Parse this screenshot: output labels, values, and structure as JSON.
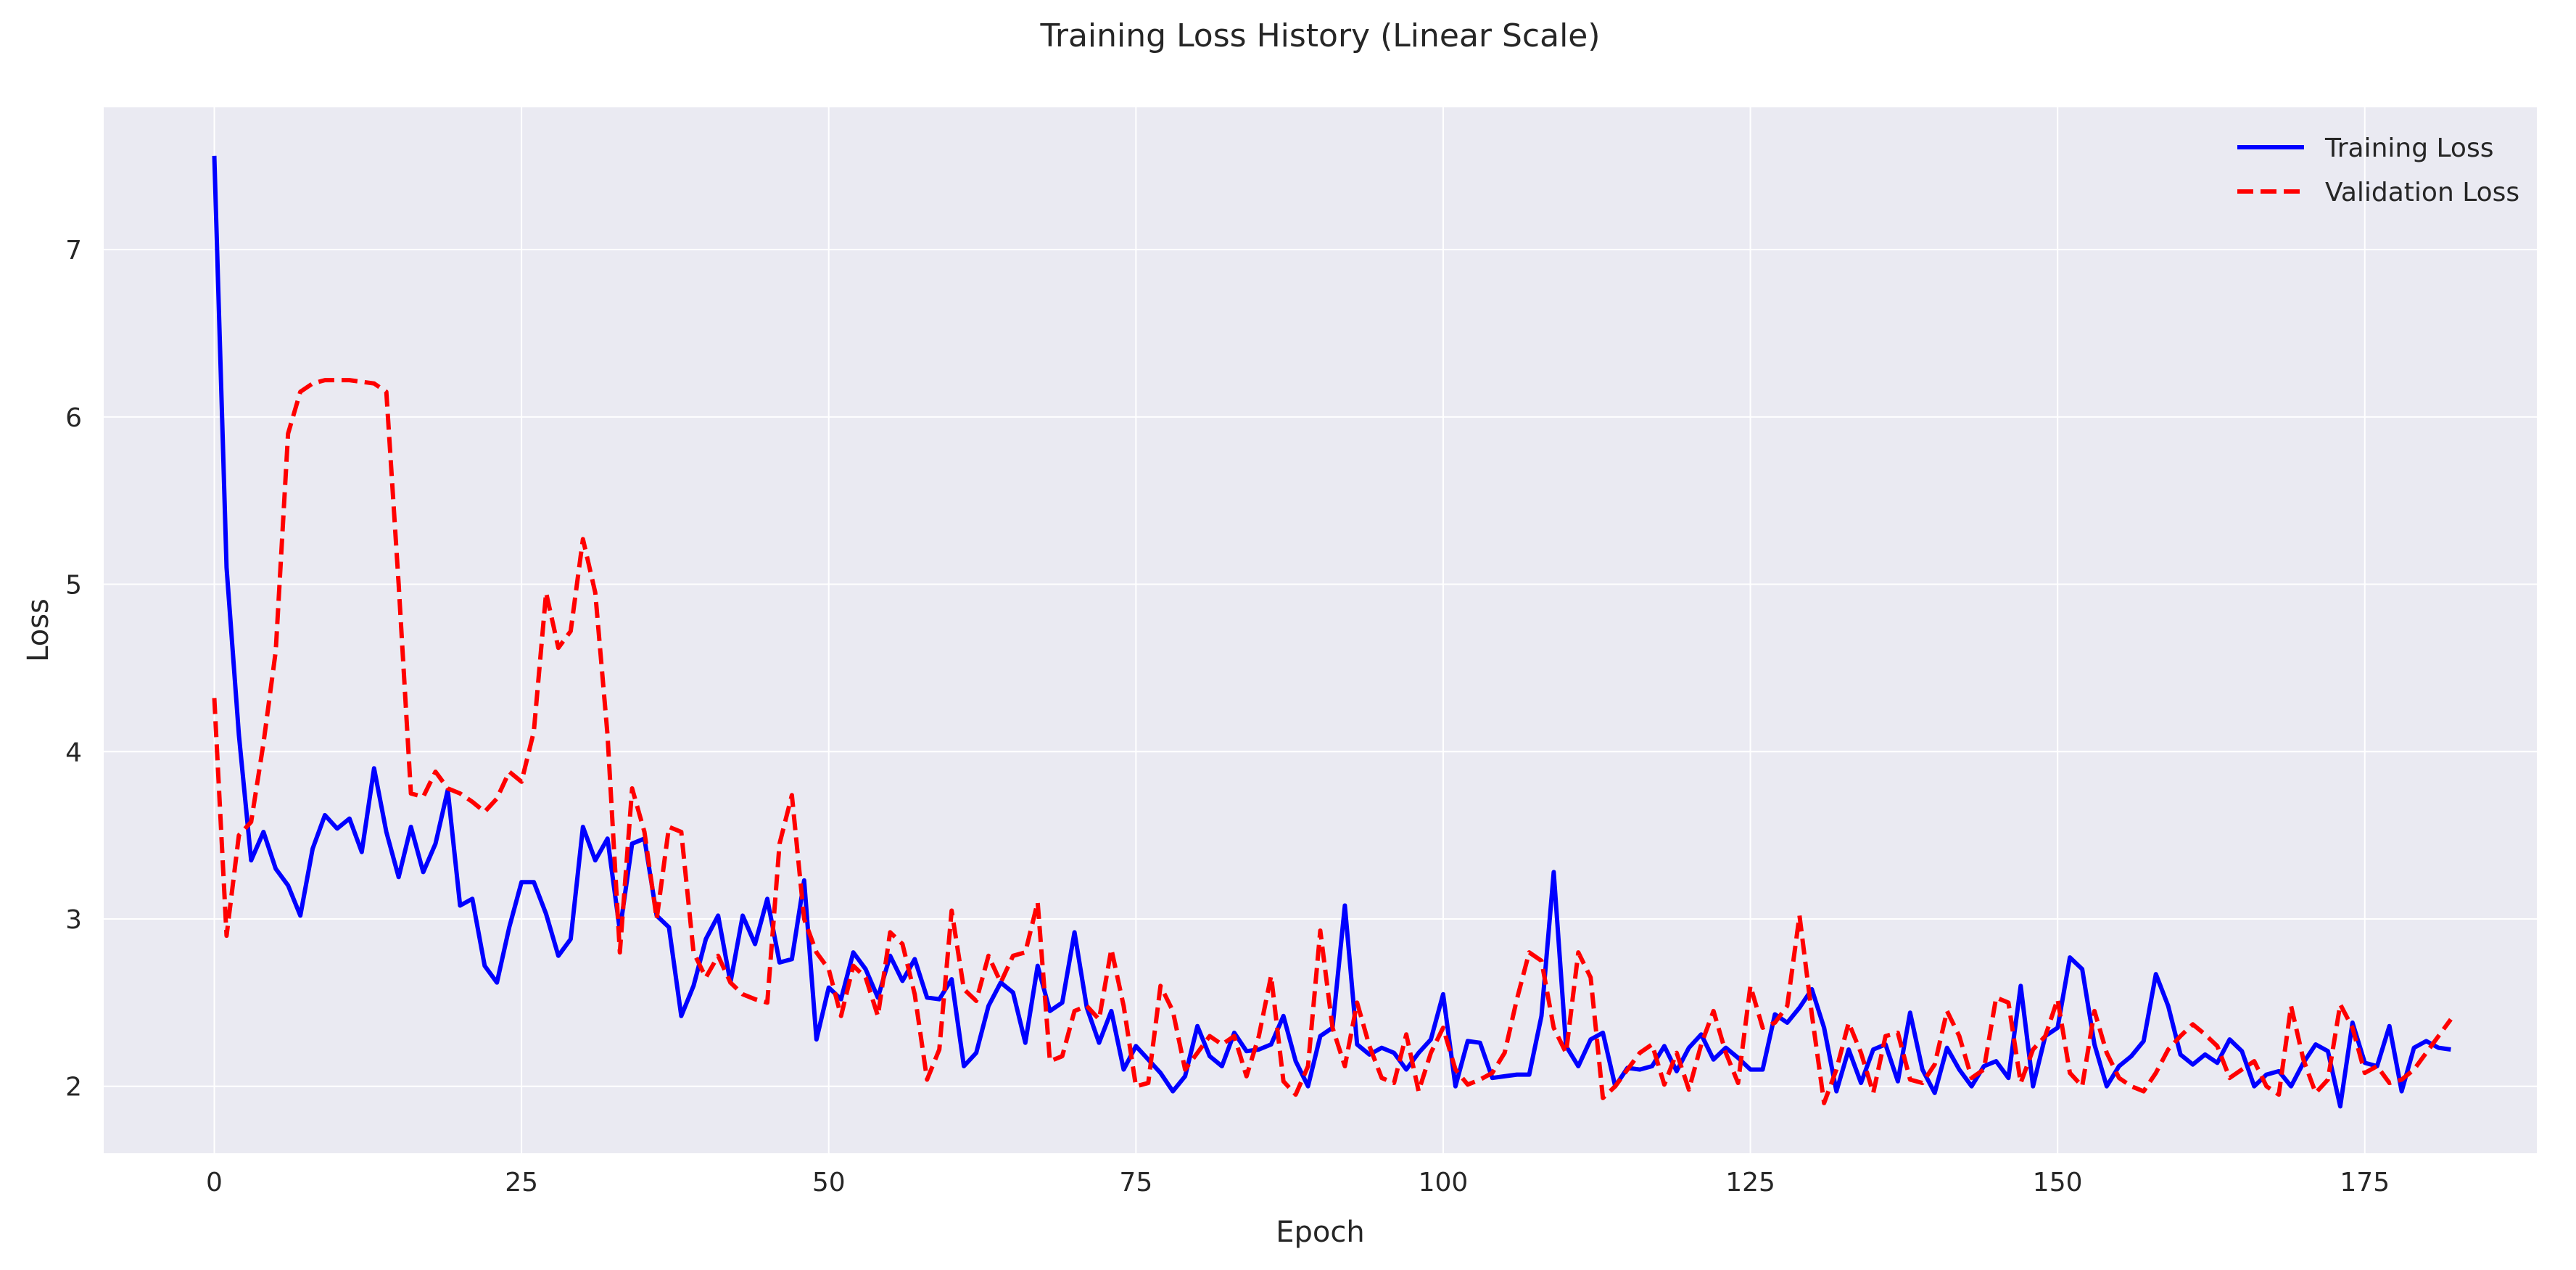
{
  "chart_data": {
    "type": "line",
    "title": "Training Loss History (Linear Scale)",
    "xlabel": "Epoch",
    "ylabel": "Loss",
    "xlim": [
      -9,
      189
    ],
    "ylim": [
      1.6,
      7.85
    ],
    "xticks": [
      0,
      25,
      50,
      75,
      100,
      125,
      150,
      175
    ],
    "yticks": [
      2,
      3,
      4,
      5,
      6,
      7
    ],
    "grid": true,
    "legend_position": "top-right",
    "series": [
      {
        "name": "Training Loss",
        "color": "#0000ff",
        "dash": "solid",
        "values": [
          7.56,
          5.1,
          4.1,
          3.35,
          3.52,
          3.3,
          3.2,
          3.02,
          3.42,
          3.62,
          3.54,
          3.6,
          3.4,
          3.9,
          3.52,
          3.25,
          3.55,
          3.28,
          3.45,
          3.77,
          3.08,
          3.12,
          2.72,
          2.62,
          2.95,
          3.22,
          3.22,
          3.03,
          2.78,
          2.88,
          3.55,
          3.35,
          3.48,
          2.93,
          3.45,
          3.48,
          3.02,
          2.95,
          2.42,
          2.6,
          2.88,
          3.02,
          2.62,
          3.02,
          2.85,
          3.12,
          2.74,
          2.76,
          3.23,
          2.28,
          2.59,
          2.52,
          2.8,
          2.7,
          2.53,
          2.78,
          2.63,
          2.76,
          2.53,
          2.52,
          2.64,
          2.12,
          2.2,
          2.48,
          2.62,
          2.56,
          2.26,
          2.72,
          2.45,
          2.5,
          2.92,
          2.47,
          2.26,
          2.45,
          2.1,
          2.24,
          2.16,
          2.08,
          1.97,
          2.06,
          2.36,
          2.18,
          2.12,
          2.32,
          2.21,
          2.22,
          2.25,
          2.42,
          2.15,
          2.0,
          2.3,
          2.35,
          3.08,
          2.25,
          2.19,
          2.23,
          2.2,
          2.1,
          2.2,
          2.28,
          2.55,
          2.0,
          2.27,
          2.26,
          2.05,
          2.06,
          2.07,
          2.07,
          2.42,
          3.28,
          2.24,
          2.12,
          2.28,
          2.32,
          2.0,
          2.11,
          2.1,
          2.12,
          2.24,
          2.09,
          2.23,
          2.31,
          2.16,
          2.23,
          2.17,
          2.1,
          2.1,
          2.43,
          2.38,
          2.47,
          2.58,
          2.35,
          1.97,
          2.22,
          2.02,
          2.22,
          2.25,
          2.03,
          2.44,
          2.1,
          1.96,
          2.23,
          2.1,
          2.0,
          2.12,
          2.15,
          2.05,
          2.6,
          2.0,
          2.3,
          2.35,
          2.77,
          2.7,
          2.25,
          2.0,
          2.12,
          2.18,
          2.27,
          2.67,
          2.48,
          2.19,
          2.13,
          2.19,
          2.14,
          2.28,
          2.21,
          2.0,
          2.07,
          2.09,
          2.0,
          2.14,
          2.25,
          2.21,
          1.88,
          2.38,
          2.14,
          2.12,
          2.36,
          1.97,
          2.23,
          2.27,
          2.23,
          2.22
        ]
      },
      {
        "name": "Validation Loss",
        "color": "#ff0000",
        "dash": "dashed",
        "values": [
          4.32,
          2.9,
          3.5,
          3.58,
          4.05,
          4.6,
          5.9,
          6.15,
          6.2,
          6.22,
          6.22,
          6.22,
          6.21,
          6.2,
          6.15,
          5.0,
          3.75,
          3.73,
          3.88,
          3.78,
          3.75,
          3.7,
          3.64,
          3.72,
          3.88,
          3.82,
          4.12,
          4.95,
          4.62,
          4.72,
          5.27,
          4.95,
          4.1,
          2.8,
          3.78,
          3.52,
          3.0,
          3.55,
          3.52,
          2.8,
          2.65,
          2.78,
          2.62,
          2.55,
          2.52,
          2.5,
          3.45,
          3.74,
          3.0,
          2.8,
          2.7,
          2.42,
          2.72,
          2.65,
          2.42,
          2.92,
          2.85,
          2.55,
          2.04,
          2.22,
          3.05,
          2.58,
          2.51,
          2.78,
          2.62,
          2.78,
          2.8,
          3.1,
          2.15,
          2.18,
          2.45,
          2.48,
          2.4,
          2.82,
          2.48,
          2.0,
          2.02,
          2.6,
          2.45,
          2.1,
          2.2,
          2.3,
          2.25,
          2.3,
          2.06,
          2.3,
          2.66,
          2.03,
          1.95,
          2.12,
          2.93,
          2.35,
          2.12,
          2.5,
          2.24,
          2.05,
          2.02,
          2.31,
          1.97,
          2.2,
          2.35,
          2.1,
          2.01,
          2.04,
          2.08,
          2.2,
          2.52,
          2.8,
          2.75,
          2.35,
          2.2,
          2.8,
          2.65,
          1.93,
          2.0,
          2.1,
          2.2,
          2.25,
          2.01,
          2.2,
          1.98,
          2.25,
          2.45,
          2.2,
          2.02,
          2.6,
          2.35,
          2.38,
          2.48,
          3.02,
          2.43,
          1.9,
          2.1,
          2.38,
          2.2,
          1.96,
          2.3,
          2.32,
          2.04,
          2.02,
          2.13,
          2.45,
          2.3,
          2.05,
          2.1,
          2.53,
          2.5,
          2.02,
          2.22,
          2.3,
          2.52,
          2.08,
          2.0,
          2.45,
          2.2,
          2.05,
          2.0,
          1.97,
          2.08,
          2.22,
          2.3,
          2.37,
          2.31,
          2.24,
          2.05,
          2.1,
          2.15,
          2.0,
          1.95,
          2.48,
          2.16,
          1.96,
          2.04,
          2.49,
          2.35,
          2.08,
          2.12,
          2.02,
          2.04,
          2.1,
          2.2,
          2.3,
          2.4
        ]
      }
    ]
  }
}
